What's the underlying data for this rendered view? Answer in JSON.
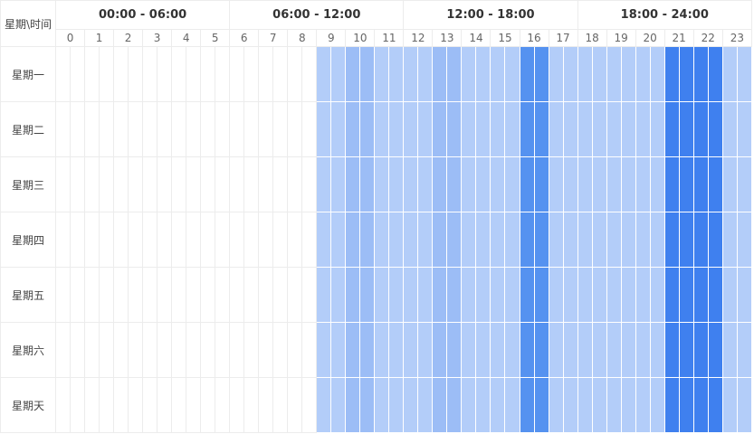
{
  "header": {
    "corner": "星期\\时间",
    "ranges": [
      "00:00 - 06:00",
      "06:00 - 12:00",
      "12:00 - 18:00",
      "18:00 - 24:00"
    ],
    "hours": [
      "0",
      "1",
      "2",
      "3",
      "4",
      "5",
      "6",
      "7",
      "8",
      "9",
      "10",
      "11",
      "12",
      "13",
      "14",
      "15",
      "16",
      "17",
      "18",
      "19",
      "20",
      "21",
      "22",
      "23"
    ]
  },
  "days": [
    "星期一",
    "星期二",
    "星期三",
    "星期四",
    "星期五",
    "星期六",
    "星期天"
  ],
  "hour_levels": [
    0,
    0,
    0,
    0,
    0,
    0,
    0,
    0,
    0,
    1,
    2,
    1,
    1,
    2,
    1,
    1,
    3,
    1,
    1,
    1,
    1,
    4,
    4,
    1
  ],
  "colors": {
    "0": "#ffffff",
    "1": "#b3cdf9",
    "2": "#9cbdf6",
    "3": "#5592f0",
    "4": "#3f80ef"
  }
}
